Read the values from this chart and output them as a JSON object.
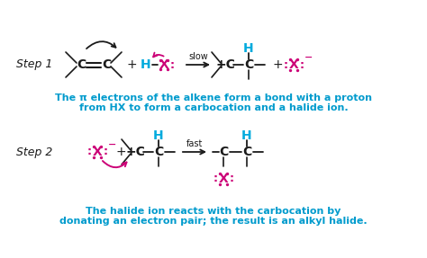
{
  "bg_color": "#ffffff",
  "cyan": "#00AADD",
  "magenta": "#CC0077",
  "dark": "#1a1a1a",
  "text_color": "#009BCD",
  "step1_desc1": "The π electrons of the alkene form a bond with a proton",
  "step1_desc2": "from HX to form a carbocation and a halide ion.",
  "step2_desc1": "The halide ion reacts with the carbocation by",
  "step2_desc2": "donating an electron pair; the result is an alkyl halide.",
  "figsize": [
    4.74,
    2.87
  ],
  "dpi": 100
}
